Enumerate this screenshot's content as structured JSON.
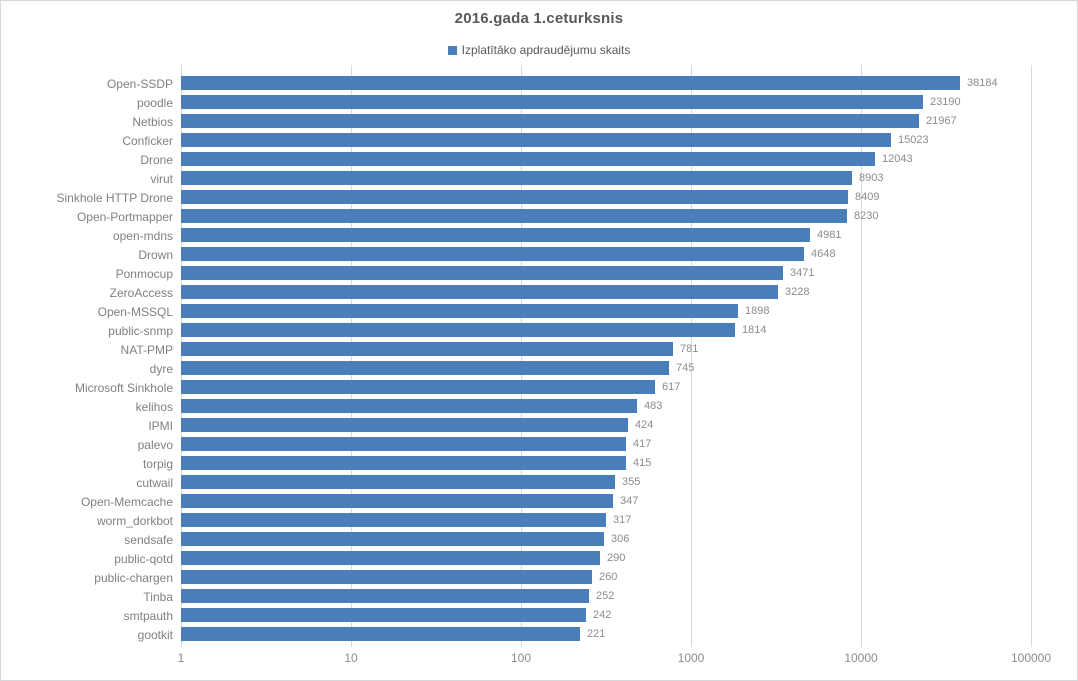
{
  "window": {
    "background": "#ffffff",
    "border_color": "#d7d7dc"
  },
  "colors": {
    "bar": "#4a7ebb",
    "title_text": "#595959",
    "legend_text": "#595959",
    "category_text": "#808080",
    "value_text": "#8c8c8c",
    "gridline": "#d9d9d9"
  },
  "chart_data": {
    "type": "bar",
    "orientation": "horizontal",
    "title": "2016.gada 1.ceturksnis",
    "legend": {
      "label": "Izplatītāko apdraudējumu skaits",
      "position": "top",
      "marker_color": "#4a7ebb"
    },
    "xlabel": "",
    "ylabel": "",
    "x_scale": "log",
    "xlim": [
      1,
      100000
    ],
    "x_ticks": [
      1,
      10,
      100,
      1000,
      10000,
      100000
    ],
    "x_tick_labels": [
      "1",
      "10",
      "100",
      "1000",
      "10000",
      "100000"
    ],
    "grid": "vertical",
    "data_labels": true,
    "categories": [
      "Open-SSDP",
      "poodle",
      "Netbios",
      "Conficker",
      "Drone",
      "virut",
      "Sinkhole HTTP Drone",
      "Open-Portmapper",
      "open-mdns",
      "Drown",
      "Ponmocup",
      "ZeroAccess",
      "Open-MSSQL",
      "public-snmp",
      "NAT-PMP",
      "dyre",
      "Microsoft Sinkhole",
      "kelihos",
      "IPMI",
      "palevo",
      "torpig",
      "cutwail",
      "Open-Memcache",
      "worm_dorkbot",
      "sendsafe",
      "public-qotd",
      "public-chargen",
      "Tinba",
      "smtpauth",
      "gootkit"
    ],
    "values": [
      38184,
      23190,
      21967,
      15023,
      12043,
      8903,
      8409,
      8230,
      4981,
      4648,
      3471,
      3228,
      1898,
      1814,
      781,
      745,
      617,
      483,
      424,
      417,
      415,
      355,
      347,
      317,
      306,
      290,
      260,
      252,
      242,
      221
    ]
  }
}
